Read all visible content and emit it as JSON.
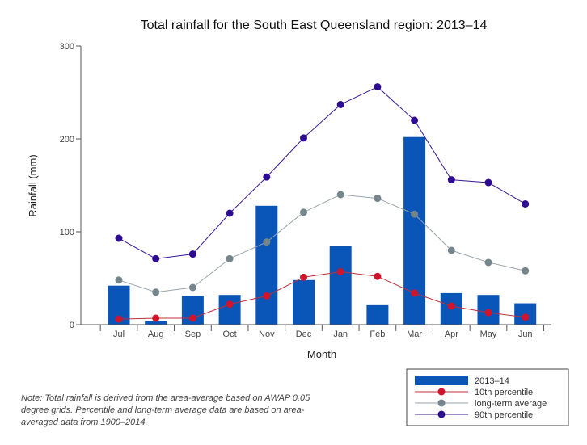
{
  "chart_data": {
    "type": "bar+line",
    "title": "Total rainfall for the South East Queensland region: 2013–14",
    "xlabel": "Month",
    "ylabel": "Rainfall (mm)",
    "ylim": [
      0,
      300
    ],
    "yticks": [
      0,
      100,
      200,
      300
    ],
    "categories": [
      "Jul",
      "Aug",
      "Sep",
      "Oct",
      "Nov",
      "Dec",
      "Jan",
      "Feb",
      "Mar",
      "Apr",
      "May",
      "Jun"
    ],
    "series": [
      {
        "name": "2013–14",
        "kind": "bar",
        "color": "#0a55b8",
        "values": [
          42,
          4,
          31,
          32,
          128,
          48,
          85,
          21,
          202,
          34,
          32,
          23
        ]
      },
      {
        "name": "10th percentile",
        "kind": "line",
        "color": "#d0142c",
        "line_color": "#c0303a",
        "values": [
          6,
          7,
          7,
          22,
          31,
          51,
          57,
          52,
          34,
          20,
          13,
          8
        ]
      },
      {
        "name": "long-term average",
        "kind": "line",
        "color": "#75858c",
        "line_color": "#9aa5aa",
        "values": [
          48,
          35,
          40,
          71,
          89,
          121,
          140,
          136,
          119,
          80,
          67,
          58
        ]
      },
      {
        "name": "90th percentile",
        "kind": "line",
        "color": "#2e0b93",
        "line_color": "#3a1a9a",
        "values": [
          93,
          71,
          76,
          120,
          159,
          201,
          237,
          256,
          220,
          156,
          153,
          130
        ]
      }
    ],
    "legend_position": "bottom-right",
    "grid": false
  },
  "note": "Note: Total rainfall is derived from the area-average based on AWAP 0.05 degree grids. Percentile and long-term average data are based on area-averaged data from 1900–2014."
}
